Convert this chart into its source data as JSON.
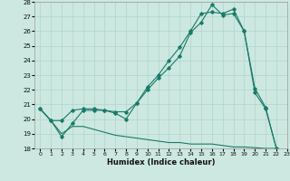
{
  "title": "",
  "xlabel": "Humidex (Indice chaleur)",
  "ylabel": "",
  "background_color": "#cce8e0",
  "grid_color": "#b0d4cc",
  "line_color": "#1a7a6a",
  "ylim": [
    18,
    28
  ],
  "xlim": [
    -0.5,
    23
  ],
  "yticks": [
    18,
    19,
    20,
    21,
    22,
    23,
    24,
    25,
    26,
    27,
    28
  ],
  "xticks": [
    0,
    1,
    2,
    3,
    4,
    5,
    6,
    7,
    8,
    9,
    10,
    11,
    12,
    13,
    14,
    15,
    16,
    17,
    18,
    19,
    20,
    21,
    22,
    23
  ],
  "line1_x": [
    0,
    1,
    2,
    3,
    4,
    5,
    6,
    7,
    8,
    9,
    10,
    11,
    12,
    13,
    14,
    15,
    16,
    17,
    18,
    19,
    20,
    21,
    22
  ],
  "line1_y": [
    20.7,
    19.9,
    18.8,
    19.7,
    20.6,
    20.6,
    20.6,
    20.4,
    20.0,
    21.1,
    22.0,
    22.8,
    23.5,
    24.3,
    25.9,
    26.6,
    27.8,
    27.1,
    27.2,
    26.0,
    21.8,
    20.7,
    18.0
  ],
  "line2_x": [
    0,
    1,
    2,
    3,
    4,
    5,
    6,
    7,
    8,
    9,
    10,
    11,
    12,
    13,
    14,
    15,
    16,
    17,
    18,
    19,
    20,
    21,
    22
  ],
  "line2_y": [
    20.7,
    19.9,
    19.9,
    20.6,
    20.7,
    20.7,
    20.6,
    20.5,
    20.5,
    21.1,
    22.2,
    23.0,
    24.0,
    24.9,
    26.0,
    27.2,
    27.3,
    27.2,
    27.5,
    26.0,
    22.1,
    20.8,
    18.0
  ],
  "line3_x": [
    0,
    1,
    2,
    3,
    4,
    5,
    6,
    7,
    8,
    9,
    10,
    11,
    12,
    13,
    14,
    15,
    16,
    17,
    18,
    19,
    20,
    21,
    22
  ],
  "line3_y": [
    20.7,
    19.9,
    19.0,
    19.5,
    19.5,
    19.3,
    19.1,
    18.9,
    18.8,
    18.7,
    18.6,
    18.5,
    18.4,
    18.4,
    18.3,
    18.3,
    18.3,
    18.2,
    18.1,
    18.1,
    18.05,
    18.0,
    18.0
  ]
}
